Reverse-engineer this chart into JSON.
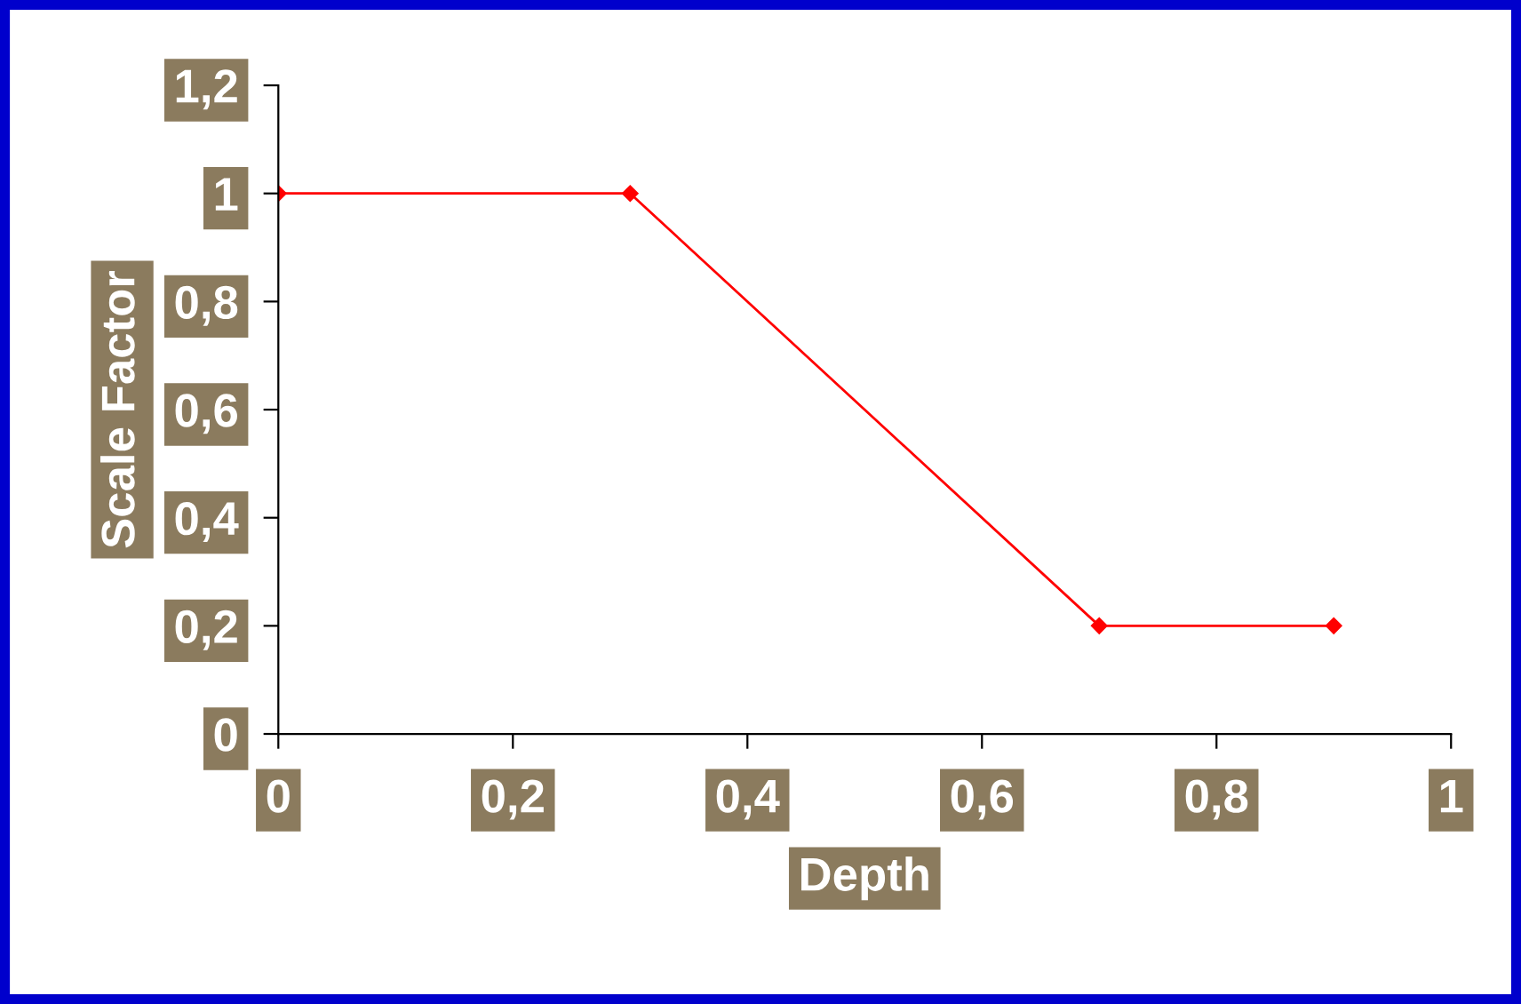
{
  "chart_data": {
    "type": "line",
    "xlabel": "Depth",
    "ylabel": "Scale Factor",
    "x": [
      0,
      0.3,
      0.7,
      0.9
    ],
    "series": [
      {
        "color": "#ff0000",
        "values": [
          1,
          1,
          0.2,
          0.2
        ]
      }
    ],
    "xlim": [
      0,
      1
    ],
    "ylim": [
      0,
      1.2
    ],
    "xticks": [
      0,
      {
        "value": 0.2,
        "label": "0,2"
      },
      {
        "value": 0.4,
        "label": "0,4"
      },
      {
        "value": 0.6,
        "label": "0,6"
      },
      {
        "value": 0.8,
        "label": "0,8"
      },
      1
    ],
    "yticks": [
      0,
      {
        "value": 0.2,
        "label": "0,2"
      },
      {
        "value": 0.4,
        "label": "0,4"
      },
      {
        "value": 0.6,
        "label": "0,6"
      },
      {
        "value": 0.8,
        "label": "0,8"
      },
      1,
      {
        "value": 1.2,
        "label": "1,2"
      }
    ],
    "grid": false,
    "legend": false,
    "marker": "diamond",
    "line_style": "solid"
  }
}
